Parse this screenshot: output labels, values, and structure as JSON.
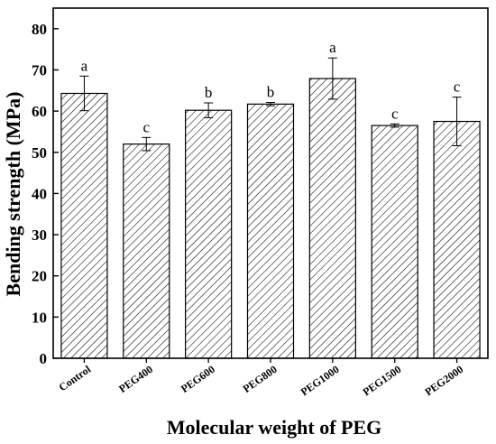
{
  "chart_data": {
    "type": "bar",
    "title": "",
    "xlabel": "Molecular weight of PEG",
    "ylabel": "Bending strength (MPa)",
    "ylim": [
      0,
      85
    ],
    "yticks": [
      0,
      10,
      20,
      30,
      40,
      50,
      60,
      70,
      80
    ],
    "categories": [
      "Control",
      "PEG400",
      "PEG600",
      "PEG800",
      "PEG1000",
      "PEG1500",
      "PEG2000"
    ],
    "values": [
      64.3,
      52.0,
      60.2,
      61.7,
      67.9,
      56.5,
      57.5
    ],
    "errors": [
      4.2,
      1.6,
      1.8,
      0.4,
      5.0,
      0.4,
      5.9
    ],
    "significance_labels": [
      "a",
      "c",
      "b",
      "b",
      "a",
      "c",
      "c"
    ],
    "bar_fill": "diagonal-hatch",
    "bar_color": "#000000",
    "grid": false,
    "legend": "none"
  }
}
